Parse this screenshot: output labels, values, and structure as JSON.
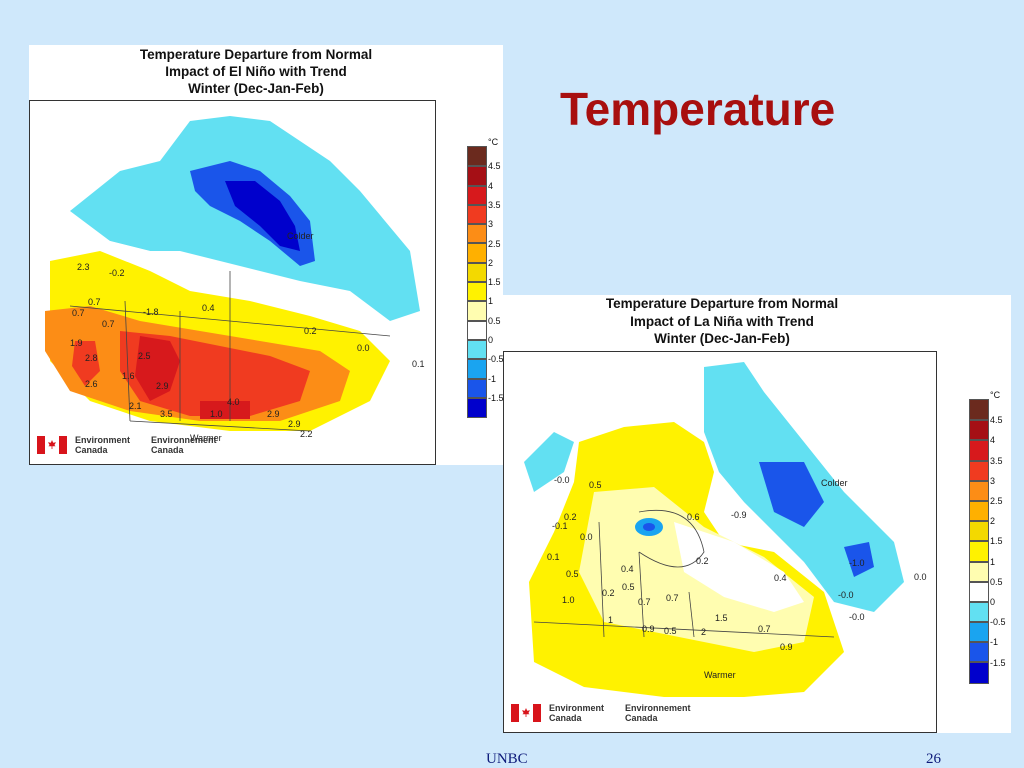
{
  "slide": {
    "title": "Temperature",
    "footer_left": "UNBC",
    "page_number": "26"
  },
  "legend": {
    "unit": "°C",
    "levels": [
      "4.5",
      "4",
      "3.5",
      "3",
      "2.5",
      "2",
      "1.5",
      "1",
      "0.5",
      "0",
      "-0.5",
      "-1",
      "-1.5"
    ],
    "colors": [
      "#6b2a1e",
      "#a50f15",
      "#d7191c",
      "#f03b20",
      "#fc8d16",
      "#ffb000",
      "#f3d900",
      "#fff200",
      "#fffdb0",
      "#ffffff",
      "#62e0f2",
      "#1aa4f0",
      "#1a55ea",
      "#0000cc"
    ]
  },
  "logos": {
    "english": [
      "Environment",
      "Canada"
    ],
    "french": [
      "Environnement",
      "Canada"
    ]
  },
  "map_el_nino": {
    "title_lines": [
      "Temperature Departure from Normal",
      "Impact of El Niño with Trend",
      "Winter (Dec-Jan-Feb)"
    ],
    "colder_label": "Colder",
    "warmer_label": "Warmer",
    "values": [
      "2.3",
      "-0.2",
      "0.7",
      "0.7",
      "0.7",
      "1.9",
      "2.8",
      "2.6",
      "1.6",
      "2.5",
      "2.9",
      "2.1",
      "3.5",
      "1.0",
      "2.9",
      "4.0",
      "2.9",
      "2.2",
      "0.4",
      "-1.8",
      "0.2",
      "0.0",
      "0.1"
    ]
  },
  "map_la_nina": {
    "title_lines": [
      "Temperature Departure from Normal",
      "Impact of La Niña with Trend",
      "Winter (Dec-Jan-Feb)"
    ],
    "colder_label": "Colder",
    "warmer_label": "Warmer",
    "values": [
      "-0.0",
      "0.5",
      "-0.1",
      "0.2",
      "0.1",
      "0.0",
      "0.4",
      "0.5",
      "0.5",
      "0.2",
      "1.0",
      "1",
      "0.7",
      "0.7",
      "0.9",
      "0.5",
      "1.5",
      "0.7",
      "2",
      "0.6",
      "0.2",
      "0.4",
      "-0.9",
      "-1.0",
      "-0.0",
      "0.0",
      "-0.0",
      "0.9"
    ]
  }
}
